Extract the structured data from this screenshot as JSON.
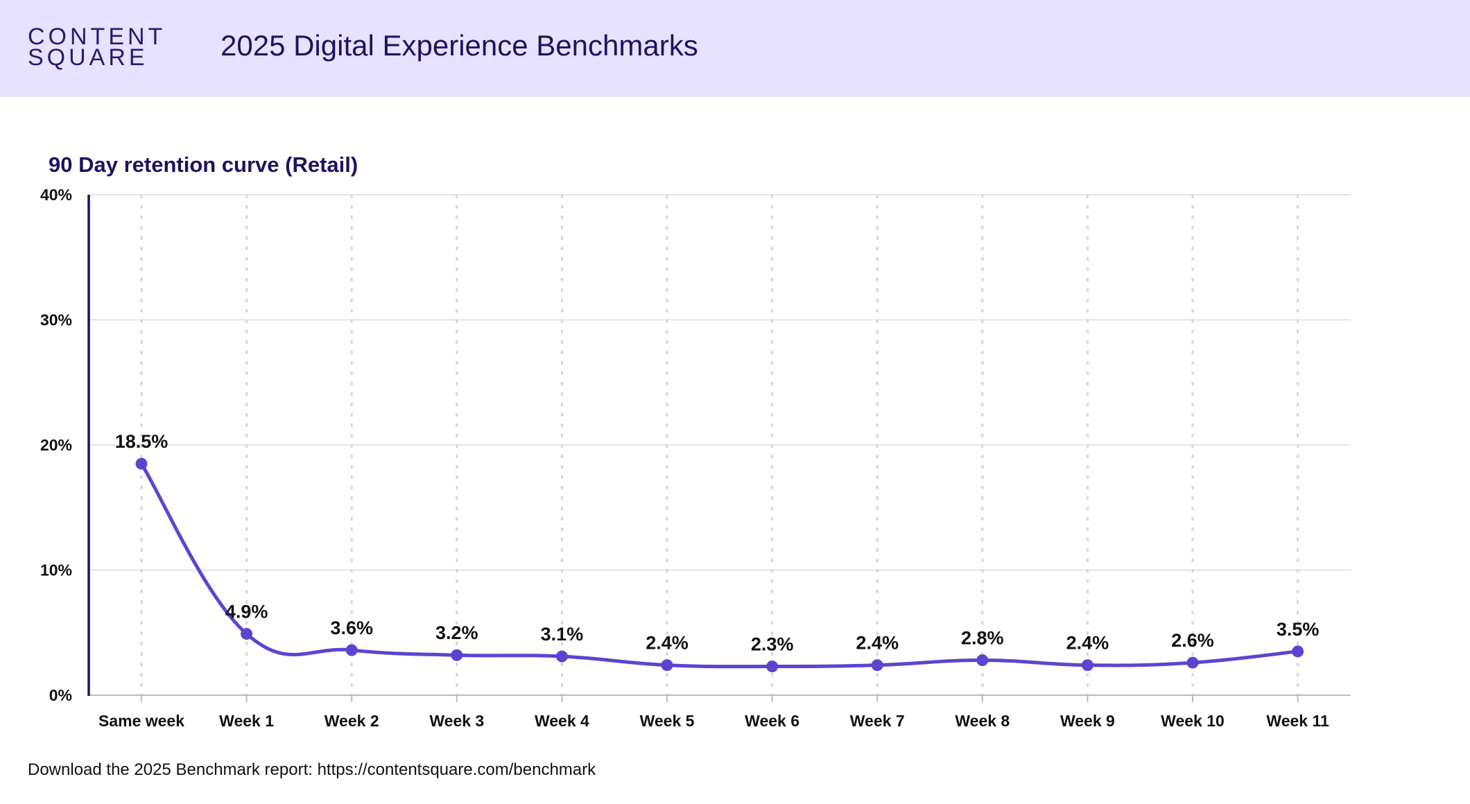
{
  "header": {
    "logo_line1": "CONTENT",
    "logo_line2": "SQUARE",
    "title": "2025 Digital Experience Benchmarks"
  },
  "footer": {
    "text": "Download the 2025 Benchmark report: https://contentsquare.com/benchmark"
  },
  "colors": {
    "header_bg": "#e6e2ff",
    "brand_dark": "#1e1260",
    "line": "#5b45d0"
  },
  "chart_data": {
    "type": "line",
    "title": "90 Day retention curve (Retail)",
    "categories": [
      "Same week",
      "Week 1",
      "Week 2",
      "Week 3",
      "Week 4",
      "Week 5",
      "Week 6",
      "Week 7",
      "Week 8",
      "Week 9",
      "Week 10",
      "Week 11"
    ],
    "values": [
      18.5,
      4.9,
      3.6,
      3.2,
      3.1,
      2.4,
      2.3,
      2.4,
      2.8,
      2.4,
      2.6,
      3.5
    ],
    "data_labels": [
      "18.5%",
      "4.9%",
      "3.6%",
      "3.2%",
      "3.1%",
      "2.4%",
      "2.3%",
      "2.4%",
      "2.8%",
      "2.4%",
      "2.6%",
      "3.5%"
    ],
    "y_ticks": [
      0,
      10,
      20,
      30,
      40
    ],
    "y_tick_labels": [
      "0%",
      "10%",
      "20%",
      "30%",
      "40%"
    ],
    "ylim": [
      0,
      40
    ],
    "xlabel": "",
    "ylabel": "",
    "grid": true,
    "smooth": true
  }
}
